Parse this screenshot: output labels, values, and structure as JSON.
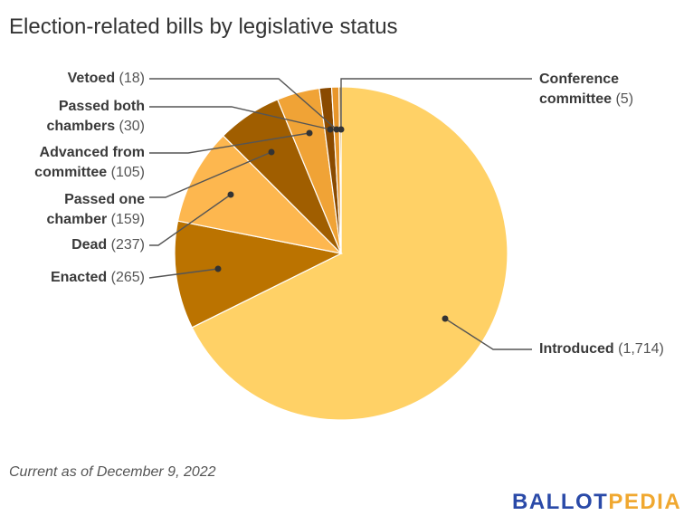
{
  "chart_data": {
    "type": "pie",
    "title": "Election-related bills by legislative status",
    "slices": [
      {
        "name": "Introduced",
        "value": 1714,
        "display": "1,714",
        "color": "#ffd166"
      },
      {
        "name": "Enacted",
        "value": 265,
        "display": "265",
        "color": "#bb7300"
      },
      {
        "name": "Dead",
        "value": 237,
        "display": "237",
        "color": "#fdb74f"
      },
      {
        "name": "Passed one chamber",
        "value": 159,
        "display": "159",
        "color": "#a05e00"
      },
      {
        "name": "Advanced from committee",
        "value": 105,
        "display": "105",
        "color": "#f0a336"
      },
      {
        "name": "Passed both chambers",
        "value": 30,
        "display": "30",
        "color": "#8a4a00"
      },
      {
        "name": "Vetoed",
        "value": 18,
        "display": "18",
        "color": "#e8962a"
      },
      {
        "name": "Conference committee",
        "value": 5,
        "display": "5",
        "color": "#c98a20"
      }
    ],
    "start": "top",
    "direction": "clockwise",
    "legend": "none"
  },
  "footer": "Current as of December 9, 2022",
  "logo": {
    "part1": "BALLOT",
    "part2": "PEDIA",
    "color1": "#2a4aa8",
    "color2": "#f0a830"
  }
}
